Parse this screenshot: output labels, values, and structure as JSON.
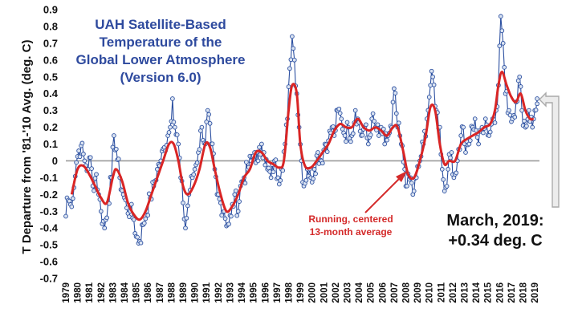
{
  "chart_data": {
    "type": "line",
    "title": [
      "UAH Satellite-Based",
      "Temperature of the",
      "Global Lower Atmosphere",
      "(Version 6.0)"
    ],
    "ylabel": "T Departure from '81-'10 Avg. (deg. C)",
    "xlabel": "",
    "ylim": [
      -0.7,
      0.9
    ],
    "xlim": [
      1979,
      2019.4
    ],
    "y_ticks": [
      "0.9",
      "0.8",
      "0.7",
      "0.6",
      "0.5",
      "0.4",
      "0.3",
      "0.2",
      "0.1",
      "0",
      "-0.1",
      "-0.2",
      "-0.3",
      "-0.4",
      "-0.5",
      "-0.6",
      "-0.7"
    ],
    "x_ticks": [
      "1979",
      "1980",
      "1981",
      "1982",
      "1983",
      "1984",
      "1985",
      "1986",
      "1987",
      "1988",
      "1989",
      "1990",
      "1991",
      "1992",
      "1993",
      "1994",
      "1995",
      "1996",
      "1997",
      "1998",
      "1999",
      "2000",
      "2001",
      "2002",
      "2003",
      "2004",
      "2005",
      "2006",
      "2007",
      "2008",
      "2009",
      "2010",
      "2011",
      "2012",
      "2013",
      "2014",
      "2015",
      "2016",
      "2017",
      "2018",
      "2019"
    ],
    "grid": false,
    "zero_line": true,
    "colors": {
      "monthly": "#2b4fa0",
      "marker_fill": "#dbe4f2",
      "running": "#d92525",
      "title": "#2e4a9e",
      "annotation": "#d42a2a",
      "arrow": "#aaaaaa",
      "zero_line": "#9a9a9a"
    },
    "series": [
      {
        "name": "Monthly",
        "style": "line-markers",
        "anchors": [
          [
            1979.0,
            -0.33
          ],
          [
            1979.1,
            -0.22
          ],
          [
            1979.4,
            -0.26
          ],
          [
            1979.7,
            -0.16
          ],
          [
            1979.9,
            -0.01
          ],
          [
            1980.1,
            0.06
          ],
          [
            1980.3,
            0.09
          ],
          [
            1980.6,
            0.0
          ],
          [
            1980.9,
            -0.05
          ],
          [
            1981.1,
            0.02
          ],
          [
            1981.3,
            -0.15
          ],
          [
            1981.6,
            -0.08
          ],
          [
            1981.8,
            -0.2
          ],
          [
            1982.0,
            -0.3
          ],
          [
            1982.3,
            -0.4
          ],
          [
            1982.6,
            -0.25
          ],
          [
            1982.9,
            -0.1
          ],
          [
            1983.1,
            0.15
          ],
          [
            1983.3,
            0.07
          ],
          [
            1983.6,
            -0.1
          ],
          [
            1983.9,
            -0.2
          ],
          [
            1984.2,
            -0.28
          ],
          [
            1984.5,
            -0.3
          ],
          [
            1984.8,
            -0.35
          ],
          [
            1985.0,
            -0.45
          ],
          [
            1985.3,
            -0.48
          ],
          [
            1985.6,
            -0.38
          ],
          [
            1985.9,
            -0.3
          ],
          [
            1986.2,
            -0.22
          ],
          [
            1986.5,
            -0.15
          ],
          [
            1986.8,
            -0.05
          ],
          [
            1987.1,
            0.0
          ],
          [
            1987.4,
            0.08
          ],
          [
            1987.7,
            0.15
          ],
          [
            1987.9,
            0.2
          ],
          [
            1988.1,
            0.37
          ],
          [
            1988.3,
            0.2
          ],
          [
            1988.6,
            0.1
          ],
          [
            1988.8,
            -0.1
          ],
          [
            1989.0,
            -0.25
          ],
          [
            1989.2,
            -0.4
          ],
          [
            1989.5,
            -0.2
          ],
          [
            1989.8,
            -0.1
          ],
          [
            1990.0,
            -0.05
          ],
          [
            1990.3,
            0.05
          ],
          [
            1990.6,
            0.2
          ],
          [
            1990.9,
            0.1
          ],
          [
            1991.1,
            0.3
          ],
          [
            1991.4,
            0.1
          ],
          [
            1991.7,
            -0.05
          ],
          [
            1991.9,
            -0.2
          ],
          [
            1992.2,
            -0.25
          ],
          [
            1992.5,
            -0.3
          ],
          [
            1992.8,
            -0.38
          ],
          [
            1993.1,
            -0.33
          ],
          [
            1993.4,
            -0.2
          ],
          [
            1993.7,
            -0.3
          ],
          [
            1993.9,
            -0.15
          ],
          [
            1994.2,
            -0.1
          ],
          [
            1994.5,
            -0.05
          ],
          [
            1994.8,
            0.0
          ],
          [
            1995.1,
            0.05
          ],
          [
            1995.4,
            0.0
          ],
          [
            1995.7,
            0.1
          ],
          [
            1995.9,
            0.05
          ],
          [
            1996.2,
            -0.05
          ],
          [
            1996.5,
            -0.1
          ],
          [
            1996.8,
            0.0
          ],
          [
            1997.1,
            -0.1
          ],
          [
            1997.4,
            -0.05
          ],
          [
            1997.7,
            0.1
          ],
          [
            1997.9,
            0.25
          ],
          [
            1998.1,
            0.55
          ],
          [
            1998.3,
            0.74
          ],
          [
            1998.5,
            0.6
          ],
          [
            1998.7,
            0.4
          ],
          [
            1998.9,
            0.2
          ],
          [
            1999.1,
            0.0
          ],
          [
            1999.3,
            -0.15
          ],
          [
            1999.6,
            -0.05
          ],
          [
            1999.9,
            -0.1
          ],
          [
            2000.2,
            -0.05
          ],
          [
            2000.5,
            0.05
          ],
          [
            2000.8,
            0.0
          ],
          [
            2001.1,
            0.1
          ],
          [
            2001.4,
            0.12
          ],
          [
            2001.7,
            0.2
          ],
          [
            2001.9,
            0.15
          ],
          [
            2002.2,
            0.3
          ],
          [
            2002.5,
            0.25
          ],
          [
            2002.8,
            0.15
          ],
          [
            2003.1,
            0.2
          ],
          [
            2003.4,
            0.15
          ],
          [
            2003.7,
            0.3
          ],
          [
            2003.9,
            0.25
          ],
          [
            2004.2,
            0.15
          ],
          [
            2004.5,
            0.2
          ],
          [
            2004.8,
            0.1
          ],
          [
            2005.1,
            0.25
          ],
          [
            2005.4,
            0.2
          ],
          [
            2005.7,
            0.15
          ],
          [
            2005.9,
            0.2
          ],
          [
            2006.2,
            0.1
          ],
          [
            2006.5,
            0.15
          ],
          [
            2006.8,
            0.2
          ],
          [
            2007.0,
            0.43
          ],
          [
            2007.3,
            0.2
          ],
          [
            2007.6,
            0.1
          ],
          [
            2007.9,
            -0.05
          ],
          [
            2008.1,
            -0.15
          ],
          [
            2008.4,
            -0.1
          ],
          [
            2008.6,
            -0.2
          ],
          [
            2008.9,
            -0.1
          ],
          [
            2009.2,
            0.0
          ],
          [
            2009.5,
            0.1
          ],
          [
            2009.8,
            0.25
          ],
          [
            2010.1,
            0.45
          ],
          [
            2010.3,
            0.5
          ],
          [
            2010.6,
            0.3
          ],
          [
            2010.9,
            0.2
          ],
          [
            2011.1,
            -0.05
          ],
          [
            2011.3,
            -0.18
          ],
          [
            2011.6,
            -0.05
          ],
          [
            2011.9,
            0.05
          ],
          [
            2012.1,
            -0.1
          ],
          [
            2012.4,
            0.0
          ],
          [
            2012.7,
            0.15
          ],
          [
            2012.9,
            0.2
          ],
          [
            2013.1,
            0.05
          ],
          [
            2013.4,
            0.1
          ],
          [
            2013.7,
            0.2
          ],
          [
            2013.9,
            0.25
          ],
          [
            2014.2,
            0.1
          ],
          [
            2014.5,
            0.2
          ],
          [
            2014.8,
            0.25
          ],
          [
            2015.1,
            0.15
          ],
          [
            2015.4,
            0.25
          ],
          [
            2015.7,
            0.3
          ],
          [
            2015.9,
            0.45
          ],
          [
            2016.1,
            0.86
          ],
          [
            2016.3,
            0.7
          ],
          [
            2016.5,
            0.4
          ],
          [
            2016.8,
            0.3
          ],
          [
            2017.1,
            0.25
          ],
          [
            2017.4,
            0.35
          ],
          [
            2017.7,
            0.5
          ],
          [
            2017.9,
            0.3
          ],
          [
            2018.2,
            0.2
          ],
          [
            2018.5,
            0.3
          ],
          [
            2018.8,
            0.2
          ],
          [
            2019.0,
            0.3
          ],
          [
            2019.2,
            0.37
          ],
          [
            2019.2,
            0.34
          ]
        ]
      },
      {
        "name": "Running, centered 13-month average",
        "style": "smooth-line",
        "anchors": [
          [
            1979.5,
            -0.2
          ],
          [
            1980.0,
            -0.05
          ],
          [
            1980.5,
            -0.03
          ],
          [
            1981.0,
            -0.08
          ],
          [
            1981.5,
            -0.15
          ],
          [
            1982.0,
            -0.22
          ],
          [
            1982.5,
            -0.25
          ],
          [
            1983.0,
            -0.1
          ],
          [
            1983.3,
            -0.05
          ],
          [
            1983.8,
            -0.12
          ],
          [
            1984.3,
            -0.25
          ],
          [
            1984.8,
            -0.32
          ],
          [
            1985.3,
            -0.35
          ],
          [
            1985.8,
            -0.3
          ],
          [
            1986.3,
            -0.2
          ],
          [
            1986.8,
            -0.1
          ],
          [
            1987.3,
            0.0
          ],
          [
            1987.8,
            0.1
          ],
          [
            1988.2,
            0.1
          ],
          [
            1988.6,
            0.0
          ],
          [
            1989.0,
            -0.15
          ],
          [
            1989.4,
            -0.2
          ],
          [
            1989.9,
            -0.15
          ],
          [
            1990.4,
            -0.05
          ],
          [
            1990.9,
            0.1
          ],
          [
            1991.3,
            0.08
          ],
          [
            1991.7,
            -0.05
          ],
          [
            1992.2,
            -0.2
          ],
          [
            1992.7,
            -0.3
          ],
          [
            1993.2,
            -0.27
          ],
          [
            1993.7,
            -0.2
          ],
          [
            1994.2,
            -0.1
          ],
          [
            1994.7,
            -0.05
          ],
          [
            1995.2,
            0.05
          ],
          [
            1995.7,
            0.05
          ],
          [
            1996.2,
            0.0
          ],
          [
            1996.7,
            -0.02
          ],
          [
            1997.2,
            -0.04
          ],
          [
            1997.6,
            0.0
          ],
          [
            1998.0,
            0.3
          ],
          [
            1998.3,
            0.45
          ],
          [
            1998.7,
            0.4
          ],
          [
            1999.0,
            0.1
          ],
          [
            1999.4,
            -0.03
          ],
          [
            1999.9,
            -0.04
          ],
          [
            2000.4,
            0.0
          ],
          [
            2000.9,
            0.05
          ],
          [
            2001.4,
            0.1
          ],
          [
            2001.9,
            0.18
          ],
          [
            2002.4,
            0.22
          ],
          [
            2002.9,
            0.2
          ],
          [
            2003.4,
            0.2
          ],
          [
            2003.9,
            0.25
          ],
          [
            2004.4,
            0.2
          ],
          [
            2004.9,
            0.18
          ],
          [
            2005.4,
            0.2
          ],
          [
            2005.9,
            0.18
          ],
          [
            2006.4,
            0.15
          ],
          [
            2006.9,
            0.2
          ],
          [
            2007.3,
            0.2
          ],
          [
            2007.8,
            0.05
          ],
          [
            2008.2,
            -0.08
          ],
          [
            2008.7,
            -0.1
          ],
          [
            2009.2,
            0.0
          ],
          [
            2009.7,
            0.15
          ],
          [
            2010.1,
            0.32
          ],
          [
            2010.5,
            0.3
          ],
          [
            2010.9,
            0.1
          ],
          [
            2011.3,
            -0.02
          ],
          [
            2011.7,
            0.0
          ],
          [
            2012.2,
            0.0
          ],
          [
            2012.7,
            0.1
          ],
          [
            2013.2,
            0.13
          ],
          [
            2013.7,
            0.15
          ],
          [
            2014.2,
            0.17
          ],
          [
            2014.7,
            0.2
          ],
          [
            2015.2,
            0.22
          ],
          [
            2015.6,
            0.3
          ],
          [
            2015.9,
            0.45
          ],
          [
            2016.2,
            0.53
          ],
          [
            2016.6,
            0.45
          ],
          [
            2017.0,
            0.38
          ],
          [
            2017.4,
            0.35
          ],
          [
            2017.8,
            0.4
          ],
          [
            2018.2,
            0.3
          ],
          [
            2018.6,
            0.25
          ],
          [
            2018.9,
            0.25
          ]
        ]
      }
    ],
    "annotations": {
      "running_label": [
        "Running, centered",
        "13-month average"
      ],
      "latest_label": [
        "March, 2019:",
        "+0.34 deg. C"
      ]
    }
  }
}
